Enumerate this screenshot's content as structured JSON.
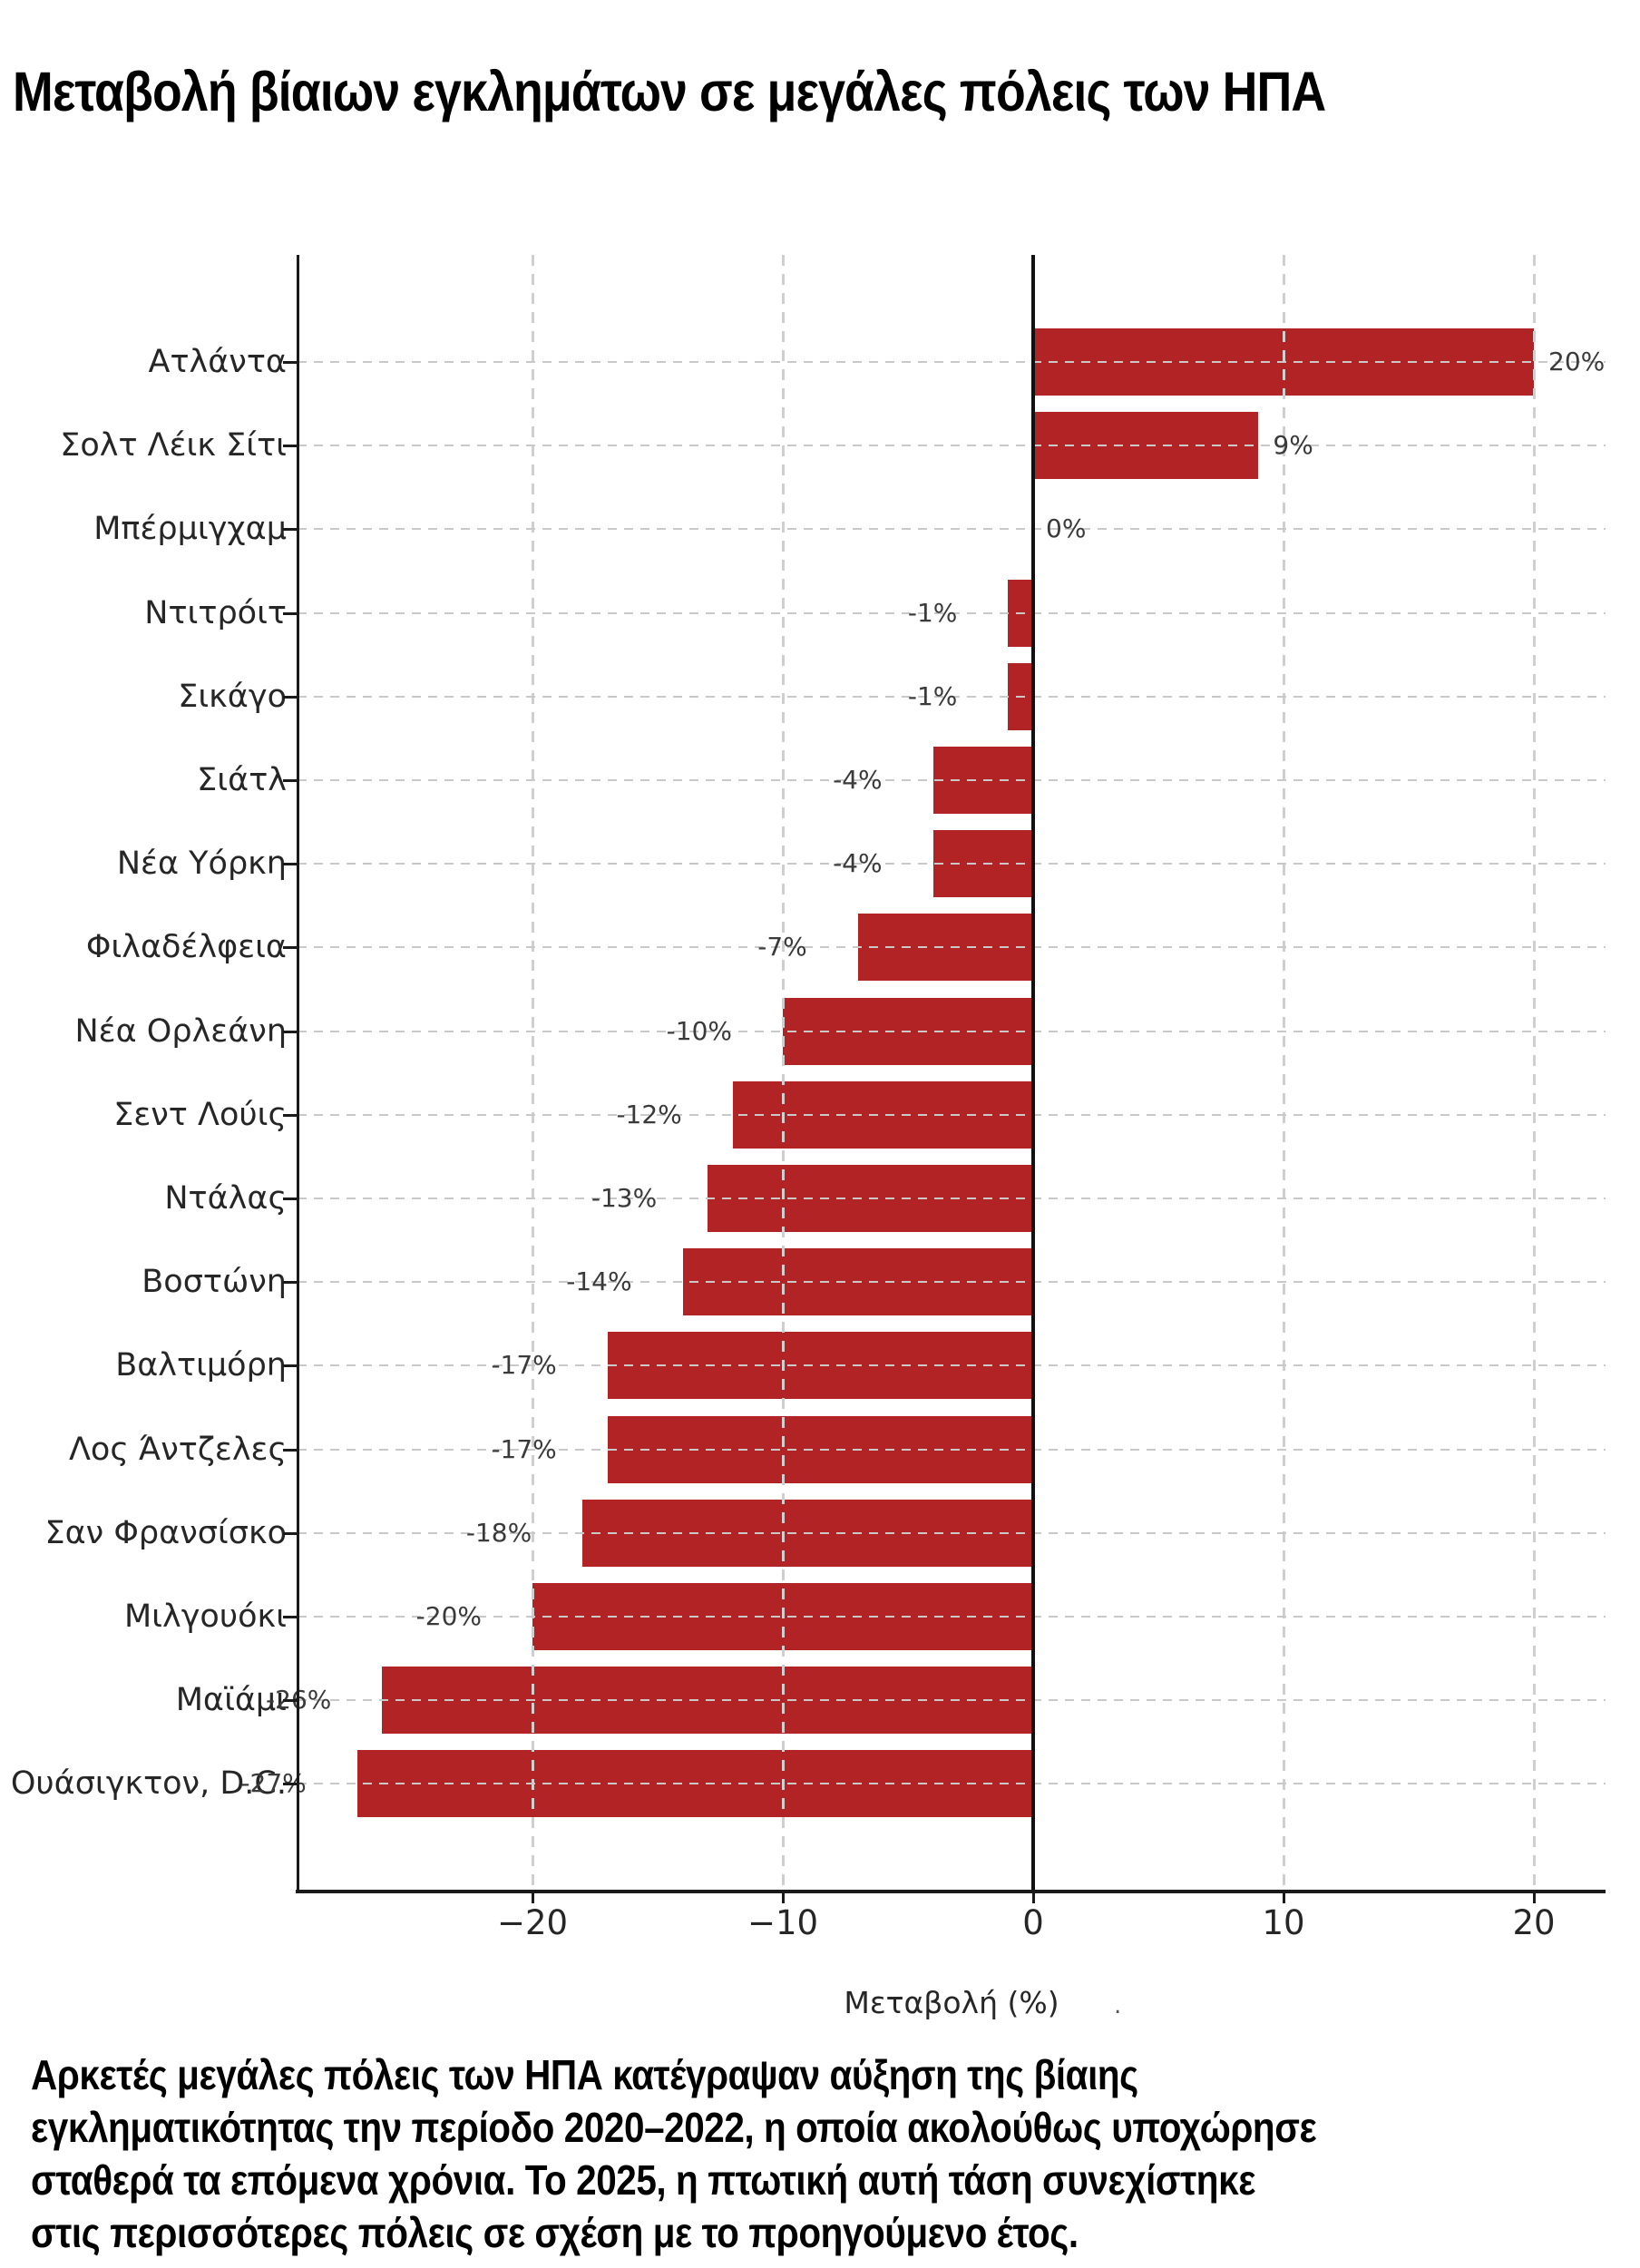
{
  "title": "Μεταβολή βίαιων εγκλημάτων σε μεγάλες πόλεις των ΗΠΑ",
  "chart_data": {
    "type": "bar",
    "orientation": "horizontal",
    "title": "Μεταβολή βίαιων εγκλημάτων σε μεγάλες πόλεις των ΗΠΑ",
    "xlabel": "Μεταβολή (%)",
    "xlabel_note": ".",
    "xlim": [
      -29.4,
      22.9
    ],
    "grid": {
      "vertical": "dashed at x ticks",
      "horizontal": "dashed at each category",
      "zero_line": "solid black"
    },
    "bar_color": "#b22326",
    "categories": [
      "Ατλάντα",
      "Σολτ Λέικ Σίτι",
      "Μπέρμιγχαμ",
      "Ντιτρόιτ",
      "Σικάγο",
      "Σιάτλ",
      "Νέα Υόρκη",
      "Φιλαδέλφεια",
      "Νέα Ορλεάνη",
      "Σεντ Λούις",
      "Ντάλας",
      "Βοστώνη",
      "Βαλτιμόρη",
      "Λος Άντζελες",
      "Σαν Φρανσίσκο",
      "Μιλγουόκι",
      "Μαϊάμι",
      "Ουάσιγκτον, D.C."
    ],
    "values": [
      20,
      9,
      0,
      -1,
      -1,
      -4,
      -4,
      -7,
      -10,
      -12,
      -13,
      -14,
      -17,
      -17,
      -18,
      -20,
      -26,
      -27
    ],
    "value_labels": [
      "20%",
      "9%",
      "0%",
      "-1%",
      "-1%",
      "-4%",
      "-4%",
      "-7%",
      "-10%",
      "-12%",
      "-13%",
      "-14%",
      "-17%",
      "-17%",
      "-18%",
      "-20%",
      "-26%",
      "-27%"
    ],
    "x_ticks": [
      {
        "value": -20,
        "label": "−20"
      },
      {
        "value": -10,
        "label": "−10"
      },
      {
        "value": 0,
        "label": "0"
      },
      {
        "value": 10,
        "label": "10"
      },
      {
        "value": 20,
        "label": "20"
      }
    ]
  },
  "caption": {
    "lines": [
      "Αρκετές μεγάλες πόλεις των ΗΠΑ κατέγραψαν αύξηση της βίαιης",
      "εγκληματικότητας την περίοδο 2020–2022, η οποία ακολούθως υποχώρησε",
      "σταθερά τα επόμενα χρόνια. Το 2025, η πτωτική αυτή τάση συνεχίστηκε",
      "στις περισσότερες πόλεις σε σχέση με το προηγούμενο έτος."
    ]
  }
}
